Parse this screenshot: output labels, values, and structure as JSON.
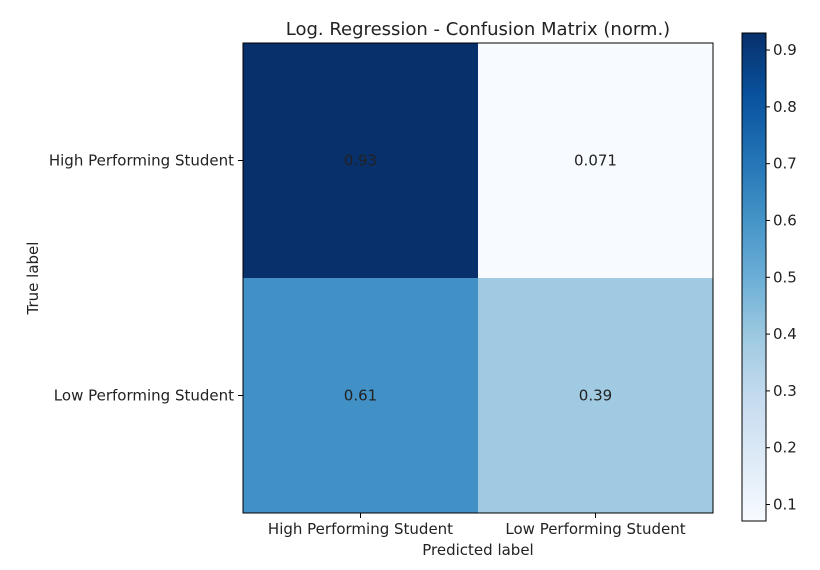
{
  "chart_data": {
    "type": "heatmap",
    "title": "Log. Regression - Confusion Matrix (norm.)",
    "xlabel": "Predicted label",
    "ylabel": "True label",
    "x_categories": [
      "High Performing Student",
      "Low Performing Student"
    ],
    "y_categories": [
      "High Performing Student",
      "Low Performing Student"
    ],
    "cells": [
      {
        "row": 0,
        "col": 0,
        "value": 0.93,
        "label": "0.93"
      },
      {
        "row": 0,
        "col": 1,
        "value": 0.071,
        "label": "0.071"
      },
      {
        "row": 1,
        "col": 0,
        "value": 0.61,
        "label": "0.61"
      },
      {
        "row": 1,
        "col": 1,
        "value": 0.39,
        "label": "0.39"
      }
    ],
    "colorbar": {
      "range": [
        0.071,
        0.93
      ],
      "ticks": [
        "0.1",
        "0.2",
        "0.3",
        "0.4",
        "0.5",
        "0.6",
        "0.7",
        "0.8",
        "0.9"
      ],
      "colormap": "Blues",
      "low_color": "#f7fbff",
      "high_color": "#08306b"
    },
    "grid": false
  }
}
